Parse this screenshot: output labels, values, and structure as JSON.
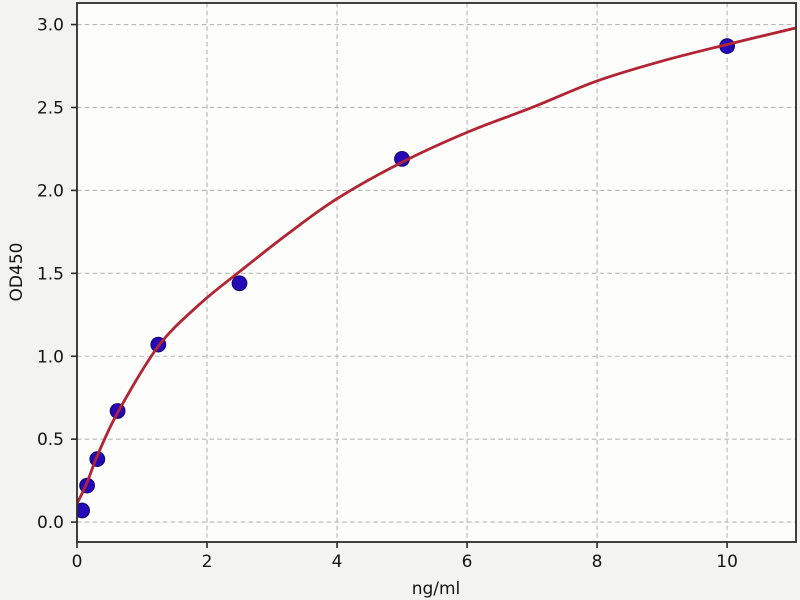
{
  "figure": {
    "background": "#f3f3f1",
    "plot_background": "#fdfdfc",
    "grid_color": "#b6b6b6",
    "spine_color": "#2b2b2b",
    "tick_color": "#2b2b2b",
    "text_color": "#141414"
  },
  "chart_data": {
    "type": "scatter",
    "title": "",
    "xlabel": "ng/ml",
    "ylabel": "OD450",
    "xlim": [
      0,
      11.06
    ],
    "ylim": [
      -0.12,
      3.13
    ],
    "xticks": [
      0,
      2,
      4,
      6,
      8,
      10
    ],
    "xtick_labels": [
      "0",
      "2",
      "4",
      "6",
      "8",
      "10"
    ],
    "yticks": [
      0,
      0.5,
      1,
      1.5,
      2,
      2.5,
      3
    ],
    "ytick_labels": [
      "0.0",
      "0.5",
      "1.0",
      "1.5",
      "2.0",
      "2.5",
      "3.0"
    ],
    "grid": true,
    "grid_style": "dashed",
    "legend": null,
    "series": [
      {
        "name": "standard-points",
        "type": "scatter",
        "marker": "circle",
        "color": "#2508b6",
        "edge_color": "#160479",
        "x": [
          0.078,
          0.156,
          0.3125,
          0.625,
          1.25,
          2.5,
          5,
          10
        ],
        "y": [
          0.07,
          0.22,
          0.38,
          0.67,
          1.07,
          1.44,
          2.19,
          2.87
        ]
      },
      {
        "name": "fitted-curve",
        "type": "line",
        "color": "#b22431",
        "points": [
          [
            0,
            0.11
          ],
          [
            0.156,
            0.24
          ],
          [
            0.3125,
            0.4
          ],
          [
            0.625,
            0.66
          ],
          [
            1.25,
            1.06
          ],
          [
            1.875,
            1.31
          ],
          [
            2.5,
            1.51
          ],
          [
            3.25,
            1.74
          ],
          [
            4,
            1.95
          ],
          [
            5,
            2.17
          ],
          [
            6,
            2.35
          ],
          [
            7,
            2.5
          ],
          [
            8,
            2.66
          ],
          [
            9,
            2.78
          ],
          [
            10,
            2.88
          ],
          [
            11.06,
            2.98
          ]
        ]
      }
    ]
  }
}
